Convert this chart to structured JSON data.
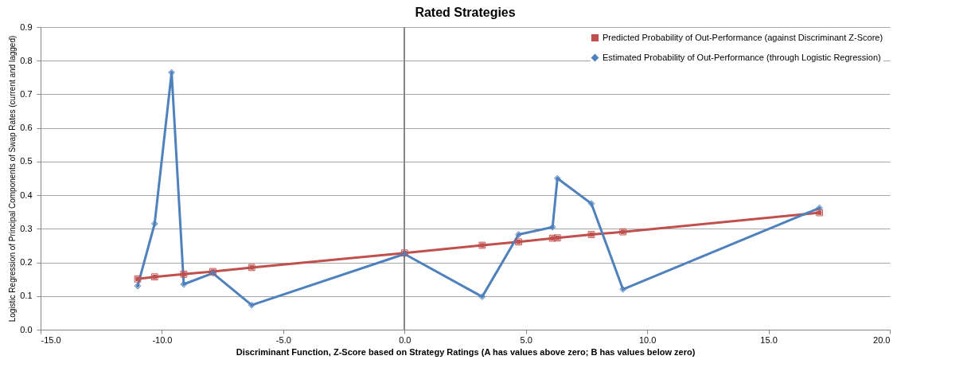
{
  "chart_data": {
    "type": "line",
    "title": "Rated Strategies",
    "xlabel": "Discriminant Function, Z-Score based on Strategy Ratings (A has values above zero; B has values below zero)",
    "ylabel": "Logistic Regression of Principal Components of Swap Rates (current and lagged)",
    "series": [
      {
        "name": "Predicted Probability of Out-Performance (against Discriminant Z-Score)",
        "color": "#c0504d",
        "marker": "square",
        "x": [
          -11.0,
          -10.3,
          -9.1,
          -7.9,
          -6.3,
          0.0,
          3.2,
          4.7,
          6.1,
          6.3,
          7.7,
          9.0,
          17.1
        ],
        "values": [
          0.151,
          0.157,
          0.165,
          0.173,
          0.185,
          0.228,
          0.251,
          0.261,
          0.272,
          0.273,
          0.283,
          0.291,
          0.348
        ]
      },
      {
        "name": "Estimated Probability of Out-Performance (through Logistic Regression)",
        "color": "#4f81bd",
        "marker": "diamond",
        "x": [
          -11.0,
          -10.3,
          -9.6,
          -9.1,
          -7.9,
          -6.3,
          0.0,
          3.2,
          4.7,
          6.1,
          6.3,
          7.7,
          9.0,
          17.1
        ],
        "values": [
          0.13,
          0.315,
          0.765,
          0.135,
          0.168,
          0.073,
          0.225,
          0.098,
          0.283,
          0.305,
          0.45,
          0.375,
          0.12,
          0.362
        ]
      }
    ],
    "xlim": [
      -15,
      20
    ],
    "xticks": [
      {
        "value": -15,
        "label": "-15.0"
      },
      {
        "value": -10,
        "label": "-10.0"
      },
      {
        "value": -5,
        "label": "-5.0"
      },
      {
        "value": 0,
        "label": "0.0"
      },
      {
        "value": 5,
        "label": "5.0"
      },
      {
        "value": 10,
        "label": "10.0"
      },
      {
        "value": 15,
        "label": "15.0"
      },
      {
        "value": 20,
        "label": "20.0"
      }
    ],
    "ylim": [
      0,
      0.9
    ],
    "yticks": [
      {
        "value": 0,
        "label": "0.0"
      },
      0.1,
      0.2,
      0.3,
      0.4,
      0.5,
      0.6,
      0.7,
      0.8,
      0.9
    ],
    "ref_lines": [
      {
        "axis": "x",
        "value": 0,
        "color": "#868686"
      }
    ],
    "grid": "y",
    "legend": "top right",
    "line_style": "solid"
  }
}
